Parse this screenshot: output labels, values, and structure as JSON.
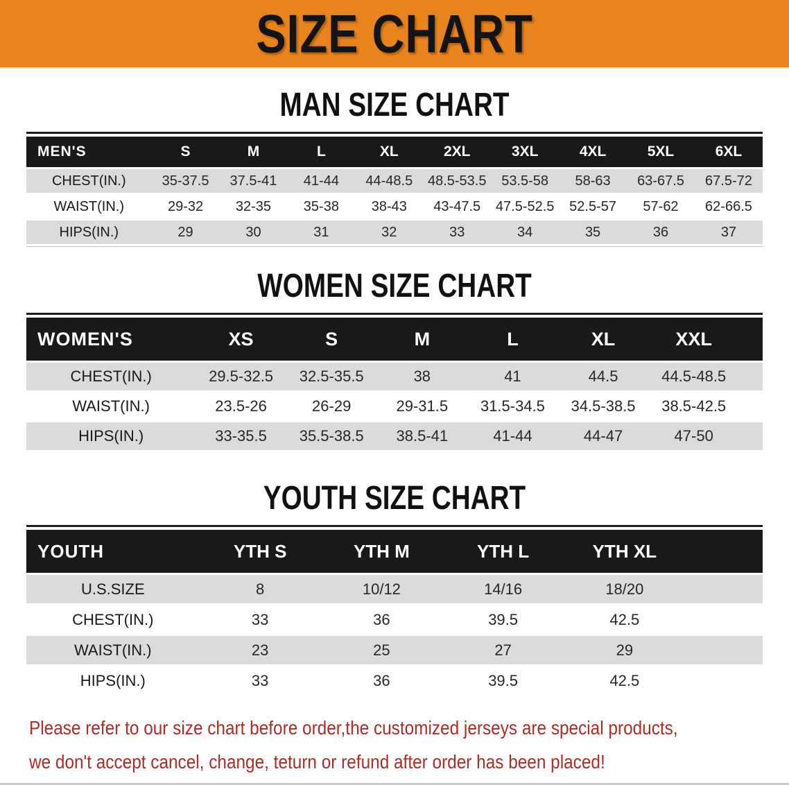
{
  "banner": {
    "title": "SIZE CHART"
  },
  "sections": {
    "man": {
      "heading": "MAN SIZE CHART"
    },
    "women": {
      "heading": "WOMEN SIZE CHART"
    },
    "youth": {
      "heading": "YOUTH SIZE CHART"
    }
  },
  "tables": {
    "men": {
      "header_label": "MEN'S",
      "sizes": [
        "S",
        "M",
        "L",
        "XL",
        "2XL",
        "3XL",
        "4XL",
        "5XL",
        "6XL"
      ],
      "rows": [
        {
          "label": "CHEST(IN.)",
          "values": [
            "35-37.5",
            "37.5-41",
            "41-44",
            "44-48.5",
            "48.5-53.5",
            "53.5-58",
            "58-63",
            "63-67.5",
            "67.5-72"
          ]
        },
        {
          "label": "WAIST(IN.)",
          "values": [
            "29-32",
            "32-35",
            "35-38",
            "38-43",
            "43-47.5",
            "47.5-52.5",
            "52.5-57",
            "57-62",
            "62-66.5"
          ]
        },
        {
          "label": "HIPS(IN.)",
          "values": [
            "29",
            "30",
            "31",
            "32",
            "33",
            "34",
            "35",
            "36",
            "37"
          ]
        }
      ]
    },
    "women": {
      "header_label": "WOMEN'S",
      "sizes": [
        "XS",
        "S",
        "M",
        "L",
        "XL",
        "XXL"
      ],
      "rows": [
        {
          "label": "CHEST(IN.)",
          "values": [
            "29.5-32.5",
            "32.5-35.5",
            "38",
            "41",
            "44.5",
            "44.5-48.5"
          ]
        },
        {
          "label": "WAIST(IN.)",
          "values": [
            "23.5-26",
            "26-29",
            "29-31.5",
            "31.5-34.5",
            "34.5-38.5",
            "38.5-42.5"
          ]
        },
        {
          "label": "HIPS(IN.)",
          "values": [
            "33-35.5",
            "35.5-38.5",
            "38.5-41",
            "41-44",
            "44-47",
            "47-50"
          ]
        }
      ]
    },
    "youth": {
      "header_label": "YOUTH",
      "sizes": [
        "YTH S",
        "YTH M",
        "YTH L",
        "YTH XL"
      ],
      "rows": [
        {
          "label": "U.S.SIZE",
          "values": [
            "8",
            "10/12",
            "14/16",
            "18/20"
          ]
        },
        {
          "label": "CHEST(IN.)",
          "values": [
            "33",
            "36",
            "39.5",
            "42.5"
          ]
        },
        {
          "label": "WAIST(IN.)",
          "values": [
            "23",
            "25",
            "27",
            "29"
          ]
        },
        {
          "label": "HIPS(IN.)",
          "values": [
            "33",
            "36",
            "39.5",
            "42.5"
          ]
        }
      ]
    }
  },
  "footer_note": {
    "line1": "Please refer to our size chart before order,the customized jerseys are special products,",
    "line2": "we don't accept cancel, change, teturn or refund after order has been placed!"
  },
  "colors": {
    "banner_orange": "#E8831E",
    "band_black": "#191919",
    "row_gray": "#DBDBDB",
    "note_red": "#B22A24"
  }
}
